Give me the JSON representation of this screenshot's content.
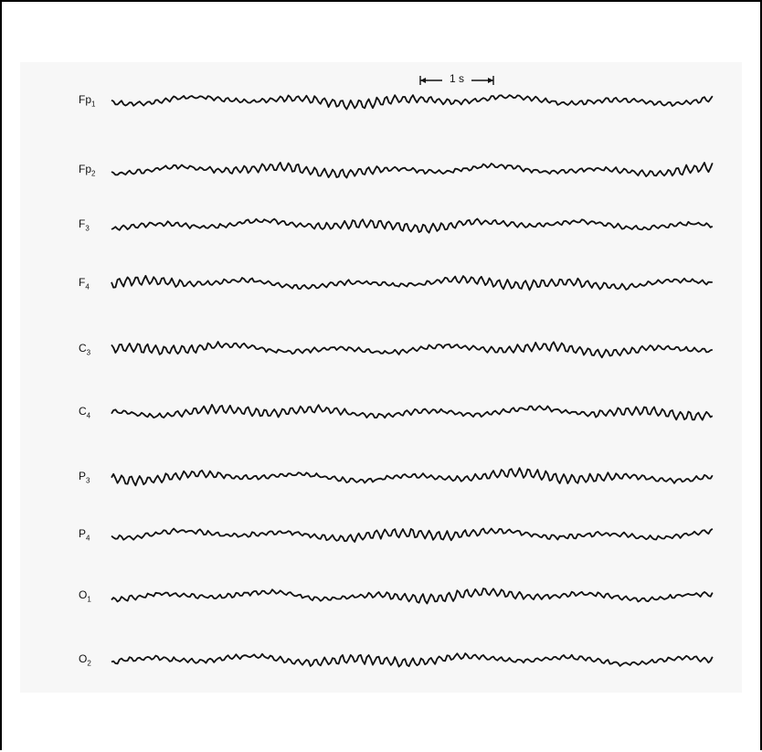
{
  "chart_data": {
    "type": "line",
    "scale_bar_label": "1 s",
    "channels": [
      {
        "name": "Fp",
        "subscript": "1"
      },
      {
        "name": "Fp",
        "subscript": "2"
      },
      {
        "name": "F",
        "subscript": "3"
      },
      {
        "name": "F",
        "subscript": "4"
      },
      {
        "name": "C",
        "subscript": "3"
      },
      {
        "name": "C",
        "subscript": "4"
      },
      {
        "name": "P",
        "subscript": "3"
      },
      {
        "name": "P",
        "subscript": "4"
      },
      {
        "name": "O",
        "subscript": "1"
      },
      {
        "name": "O",
        "subscript": "2"
      }
    ],
    "trace_color": "#111111",
    "grid": false
  }
}
